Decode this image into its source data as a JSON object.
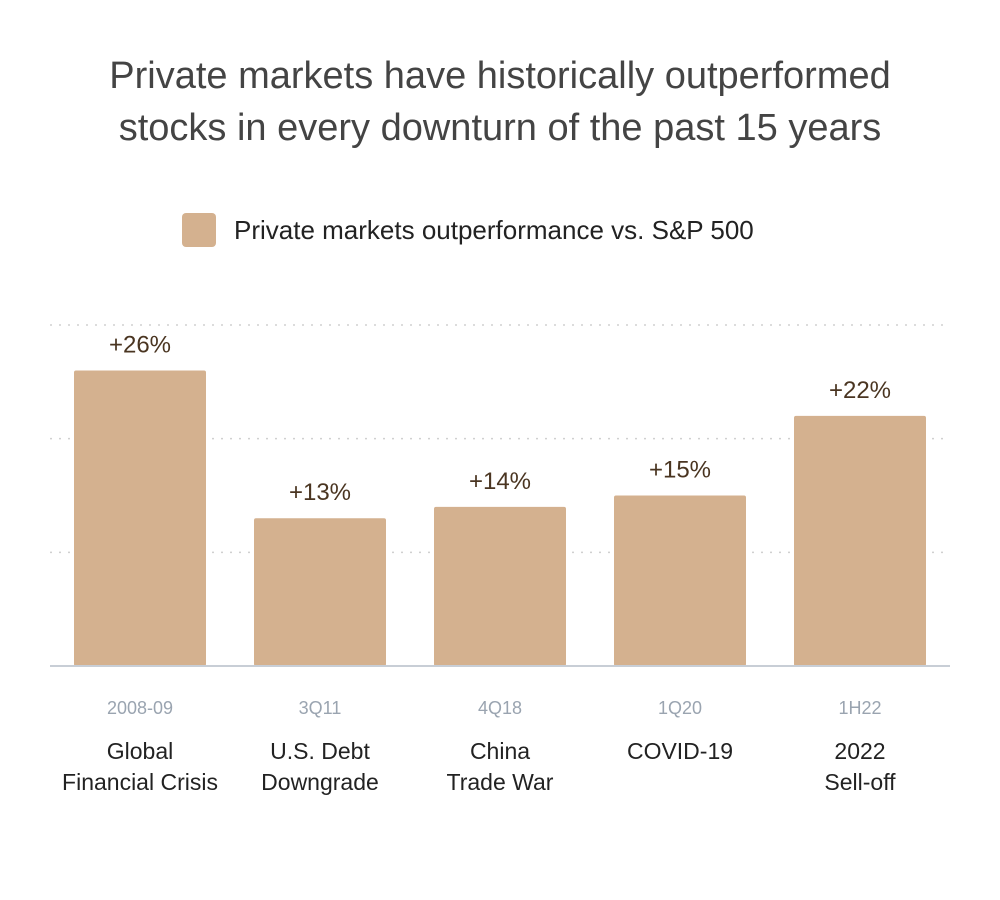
{
  "chart_data": {
    "type": "bar",
    "title_lines": [
      "Private markets have historically outperformed",
      "stocks in every downturn of the past 15 years"
    ],
    "legend": {
      "label": "Private markets outperformance vs. S&P 500",
      "position": "top"
    },
    "periods": [
      "2008-09",
      "3Q11",
      "4Q18",
      "1Q20",
      "1H22"
    ],
    "categories": [
      [
        "Global",
        "Financial Crisis"
      ],
      [
        "U.S. Debt",
        "Downgrade"
      ],
      [
        "China",
        "Trade War"
      ],
      [
        "COVID-19"
      ],
      [
        "2022",
        "Sell-off"
      ]
    ],
    "series": [
      {
        "name": "Private markets outperformance vs. S&P 500",
        "values": [
          26,
          13,
          14,
          15,
          22
        ],
        "labels": [
          "+26%",
          "+13%",
          "+14%",
          "+15%",
          "+22%"
        ]
      }
    ],
    "ylim": [
      0,
      30
    ],
    "gridlines": [
      10,
      20,
      30
    ],
    "grid": true,
    "colors": {
      "bar": "#d4b18f",
      "value_label": "#4a3521",
      "period_label": "#9aa4b0",
      "category_label": "#222222",
      "grid": "#d0d0d0",
      "axis": "#c8ced6"
    }
  }
}
